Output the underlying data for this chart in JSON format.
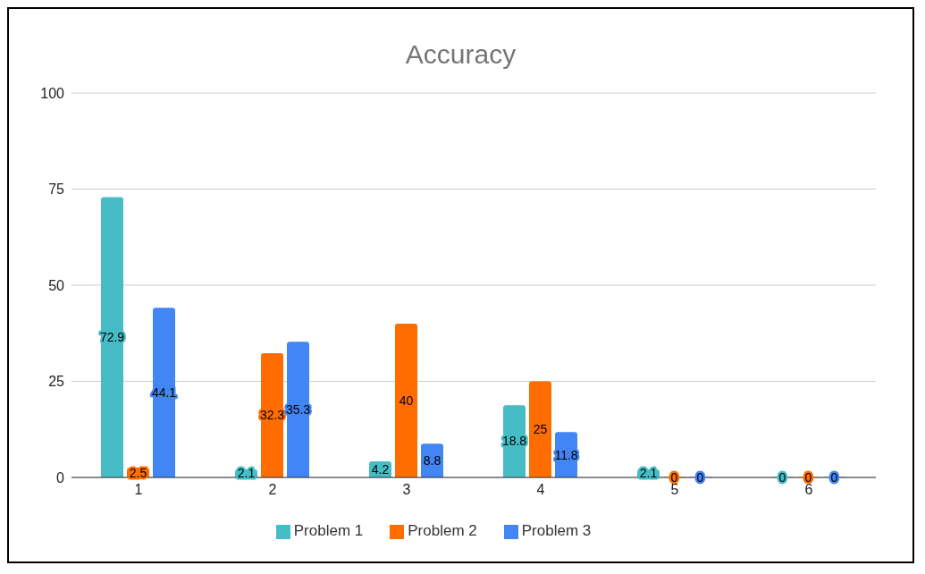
{
  "chart_data": {
    "type": "bar",
    "title": "Accuracy",
    "categories": [
      "1",
      "2",
      "3",
      "4",
      "5",
      "6"
    ],
    "series": [
      {
        "name": "Problem 1",
        "color": "#46bdc6",
        "values": [
          72.9,
          2.1,
          4.2,
          18.8,
          2.1,
          0
        ]
      },
      {
        "name": "Problem 2",
        "color": "#ff6d01",
        "values": [
          2.5,
          32.3,
          40,
          25,
          0,
          0
        ]
      },
      {
        "name": "Problem 3",
        "color": "#4285f4",
        "values": [
          44.1,
          35.3,
          8.8,
          11.8,
          0,
          0
        ]
      }
    ],
    "ylim": [
      0,
      100
    ],
    "yticks": [
      0,
      25,
      50,
      75,
      100
    ],
    "grid": "y",
    "legend": "bottom",
    "data_labels": true
  }
}
